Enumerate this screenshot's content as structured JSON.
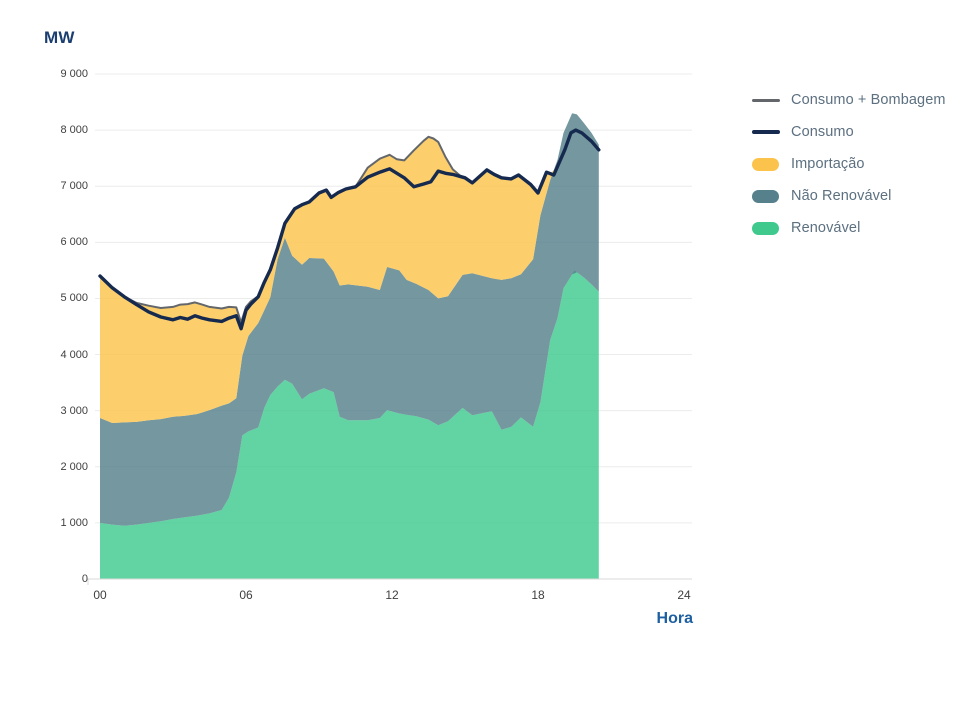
{
  "page": {
    "background": "#FFFFFF"
  },
  "chart": {
    "y_axis_title": "MW",
    "x_axis_title": "Hora",
    "legend": [
      {
        "id": "consumo-bombagem",
        "label": "Consumo + Bombagem",
        "swatch": "line",
        "color": "#63676B",
        "thickness": 3
      },
      {
        "id": "consumo",
        "label": "Consumo",
        "swatch": "line",
        "color": "#16294E",
        "thickness": 4
      },
      {
        "id": "importacao",
        "label": "Importação",
        "swatch": "pill",
        "color": "#FBC34C"
      },
      {
        "id": "nao-renovavel",
        "label": "Não Renovável",
        "swatch": "pill",
        "color": "#56808B"
      },
      {
        "id": "renovavel",
        "label": "Renovável",
        "swatch": "pill",
        "color": "#3FC98D"
      }
    ]
  },
  "chart_data": {
    "type": "area",
    "title": "MW",
    "xlabel": "Hora",
    "ylabel": "MW",
    "xlim": [
      0,
      24
    ],
    "ylim": [
      0,
      9000
    ],
    "grid": "horizontal",
    "legend_position": "right",
    "data_end_hour": 20.5,
    "x_ticks": {
      "values": [
        0,
        6,
        12,
        18,
        24
      ],
      "labels": [
        "00",
        "06",
        "12",
        "18",
        "24"
      ]
    },
    "y_ticks": {
      "values": [
        0,
        1000,
        2000,
        3000,
        4000,
        5000,
        6000,
        7000,
        8000,
        9000
      ],
      "labels": [
        "0",
        "1 000",
        "2 000",
        "3 000",
        "4 000",
        "5 000",
        "6 000",
        "7 000",
        "8 000",
        "9 000"
      ]
    },
    "colors": {
      "renovavel": "#3FC98D",
      "nao_renovavel": "#56808B",
      "importacao": "#FBC34C",
      "consumo": "#16294E",
      "consumo_bombagem": "#63676B",
      "area_fill_opacity": 0.82,
      "gridline": "#ECECEC",
      "axis_baseline": "#D8D8D8",
      "tick_text": "#3F3F3F",
      "mw_title": "#1B3E70",
      "hora_title": "#1D5FA0",
      "legend_text": "#5C7080"
    },
    "stacking_note": "Area series give cumulative stack tops in MW ([hour, MW]). Importação band top = max(Consumo + Bombagem, Não Renovável top); it exists only while imports > 0 (until ~18.8h).",
    "series": [
      {
        "name": "Renovável",
        "type": "area",
        "role": "stack-top-1",
        "color": "#3FC98D",
        "points": [
          [
            0,
            1000
          ],
          [
            0.5,
            970
          ],
          [
            1,
            950
          ],
          [
            1.5,
            970
          ],
          [
            2,
            1000
          ],
          [
            2.5,
            1030
          ],
          [
            3,
            1070
          ],
          [
            3.5,
            1100
          ],
          [
            4,
            1130
          ],
          [
            4.5,
            1170
          ],
          [
            5,
            1230
          ],
          [
            5.3,
            1450
          ],
          [
            5.6,
            1900
          ],
          [
            5.85,
            2560
          ],
          [
            6.1,
            2630
          ],
          [
            6.5,
            2700
          ],
          [
            6.75,
            3050
          ],
          [
            7,
            3280
          ],
          [
            7.3,
            3430
          ],
          [
            7.6,
            3550
          ],
          [
            7.9,
            3480
          ],
          [
            8.3,
            3200
          ],
          [
            8.6,
            3300
          ],
          [
            9.2,
            3400
          ],
          [
            9.6,
            3330
          ],
          [
            9.85,
            2890
          ],
          [
            10.2,
            2830
          ],
          [
            11,
            2830
          ],
          [
            11.5,
            2870
          ],
          [
            11.8,
            3010
          ],
          [
            12.3,
            2950
          ],
          [
            13,
            2900
          ],
          [
            13.5,
            2840
          ],
          [
            13.9,
            2740
          ],
          [
            14.3,
            2810
          ],
          [
            14.9,
            3050
          ],
          [
            15.3,
            2920
          ],
          [
            16.1,
            2990
          ],
          [
            16.5,
            2660
          ],
          [
            16.9,
            2710
          ],
          [
            17.3,
            2880
          ],
          [
            17.8,
            2715
          ],
          [
            18.1,
            3150
          ],
          [
            18.5,
            4260
          ],
          [
            18.8,
            4650
          ],
          [
            19.05,
            5180
          ],
          [
            19.5,
            5500
          ],
          [
            19.9,
            5370
          ],
          [
            20.2,
            5250
          ],
          [
            20.5,
            5120
          ]
        ]
      },
      {
        "name": "Não Renovável",
        "type": "area",
        "role": "stack-top-2",
        "color": "#56808B",
        "points": [
          [
            0,
            2870
          ],
          [
            0.5,
            2780
          ],
          [
            1,
            2790
          ],
          [
            1.5,
            2800
          ],
          [
            2,
            2830
          ],
          [
            2.5,
            2850
          ],
          [
            3,
            2890
          ],
          [
            3.5,
            2910
          ],
          [
            4,
            2940
          ],
          [
            4.5,
            3010
          ],
          [
            5,
            3090
          ],
          [
            5.3,
            3130
          ],
          [
            5.6,
            3220
          ],
          [
            5.85,
            3980
          ],
          [
            6.1,
            4330
          ],
          [
            6.5,
            4560
          ],
          [
            6.75,
            4790
          ],
          [
            7,
            5020
          ],
          [
            7.3,
            5700
          ],
          [
            7.6,
            6080
          ],
          [
            7.9,
            5760
          ],
          [
            8.3,
            5600
          ],
          [
            8.6,
            5720
          ],
          [
            9.2,
            5710
          ],
          [
            9.6,
            5480
          ],
          [
            9.85,
            5230
          ],
          [
            10.2,
            5250
          ],
          [
            11,
            5210
          ],
          [
            11.5,
            5150
          ],
          [
            11.8,
            5560
          ],
          [
            12.3,
            5500
          ],
          [
            12.6,
            5330
          ],
          [
            13,
            5260
          ],
          [
            13.5,
            5150
          ],
          [
            13.9,
            5000
          ],
          [
            14.3,
            5040
          ],
          [
            14.9,
            5420
          ],
          [
            15.3,
            5450
          ],
          [
            16.1,
            5360
          ],
          [
            16.5,
            5330
          ],
          [
            16.9,
            5360
          ],
          [
            17.3,
            5430
          ],
          [
            17.8,
            5700
          ],
          [
            18.1,
            6480
          ],
          [
            18.5,
            7110
          ],
          [
            18.8,
            7470
          ],
          [
            19.05,
            7950
          ],
          [
            19.4,
            8300
          ],
          [
            19.6,
            8280
          ],
          [
            19.9,
            8120
          ],
          [
            20.2,
            7950
          ],
          [
            20.5,
            7740
          ]
        ]
      },
      {
        "name": "Importação",
        "type": "area",
        "role": "stack-top-3",
        "color": "#FBC34C",
        "top_equals": "max(Consumo + Bombagem, Não Renovável top)"
      },
      {
        "name": "Consumo + Bombagem",
        "type": "line",
        "color": "#63676B",
        "points": [
          [
            0,
            5400
          ],
          [
            0.5,
            5190
          ],
          [
            1,
            5030
          ],
          [
            1.5,
            4920
          ],
          [
            2,
            4870
          ],
          [
            2.5,
            4830
          ],
          [
            3,
            4850
          ],
          [
            3.3,
            4890
          ],
          [
            3.6,
            4900
          ],
          [
            3.9,
            4930
          ],
          [
            4.2,
            4890
          ],
          [
            4.5,
            4850
          ],
          [
            5,
            4820
          ],
          [
            5.3,
            4850
          ],
          [
            5.6,
            4840
          ],
          [
            5.8,
            4570
          ],
          [
            6,
            4850
          ],
          [
            6.2,
            4950
          ],
          [
            6.5,
            5040
          ],
          [
            6.75,
            5290
          ],
          [
            7,
            5510
          ],
          [
            7.3,
            5900
          ],
          [
            7.6,
            6340
          ],
          [
            8,
            6600
          ],
          [
            8.3,
            6670
          ],
          [
            8.6,
            6720
          ],
          [
            9,
            6880
          ],
          [
            9.3,
            6930
          ],
          [
            9.5,
            6800
          ],
          [
            9.8,
            6890
          ],
          [
            10.1,
            6950
          ],
          [
            10.5,
            6990
          ],
          [
            11,
            7330
          ],
          [
            11.5,
            7490
          ],
          [
            11.9,
            7560
          ],
          [
            12.2,
            7480
          ],
          [
            12.5,
            7460
          ],
          [
            12.9,
            7640
          ],
          [
            13.3,
            7810
          ],
          [
            13.5,
            7880
          ],
          [
            13.7,
            7850
          ],
          [
            13.9,
            7790
          ],
          [
            14.2,
            7520
          ],
          [
            14.5,
            7300
          ],
          [
            14.8,
            7190
          ],
          [
            15,
            7150
          ],
          [
            15.3,
            7060
          ],
          [
            15.9,
            7290
          ],
          [
            16.2,
            7210
          ],
          [
            16.5,
            7150
          ],
          [
            16.9,
            7130
          ],
          [
            17.2,
            7200
          ],
          [
            17.7,
            7030
          ],
          [
            18,
            6880
          ],
          [
            18.35,
            7250
          ],
          [
            18.65,
            7200
          ],
          [
            19.1,
            7650
          ],
          [
            19.35,
            7950
          ],
          [
            19.55,
            8000
          ],
          [
            19.8,
            7950
          ],
          [
            20.2,
            7800
          ],
          [
            20.5,
            7650
          ]
        ]
      },
      {
        "name": "Consumo",
        "type": "line",
        "color": "#16294E",
        "points": [
          [
            0,
            5400
          ],
          [
            0.5,
            5190
          ],
          [
            1,
            5030
          ],
          [
            1.5,
            4890
          ],
          [
            2,
            4760
          ],
          [
            2.5,
            4670
          ],
          [
            3,
            4620
          ],
          [
            3.3,
            4660
          ],
          [
            3.6,
            4630
          ],
          [
            3.9,
            4690
          ],
          [
            4.2,
            4650
          ],
          [
            4.5,
            4620
          ],
          [
            5,
            4590
          ],
          [
            5.3,
            4650
          ],
          [
            5.6,
            4690
          ],
          [
            5.8,
            4460
          ],
          [
            6,
            4790
          ],
          [
            6.2,
            4900
          ],
          [
            6.5,
            5030
          ],
          [
            6.75,
            5290
          ],
          [
            7,
            5510
          ],
          [
            7.3,
            5900
          ],
          [
            7.6,
            6340
          ],
          [
            8,
            6600
          ],
          [
            8.3,
            6670
          ],
          [
            8.6,
            6720
          ],
          [
            9,
            6880
          ],
          [
            9.3,
            6930
          ],
          [
            9.5,
            6800
          ],
          [
            9.8,
            6890
          ],
          [
            10.1,
            6950
          ],
          [
            10.5,
            6990
          ],
          [
            11,
            7160
          ],
          [
            11.5,
            7250
          ],
          [
            11.9,
            7310
          ],
          [
            12.2,
            7230
          ],
          [
            12.5,
            7150
          ],
          [
            12.9,
            6990
          ],
          [
            13.3,
            7040
          ],
          [
            13.6,
            7080
          ],
          [
            13.9,
            7270
          ],
          [
            14.2,
            7230
          ],
          [
            14.5,
            7210
          ],
          [
            15,
            7150
          ],
          [
            15.3,
            7060
          ],
          [
            15.9,
            7290
          ],
          [
            16.2,
            7210
          ],
          [
            16.5,
            7150
          ],
          [
            16.9,
            7130
          ],
          [
            17.2,
            7200
          ],
          [
            17.7,
            7030
          ],
          [
            18,
            6880
          ],
          [
            18.35,
            7250
          ],
          [
            18.65,
            7200
          ],
          [
            19.1,
            7650
          ],
          [
            19.35,
            7950
          ],
          [
            19.55,
            8000
          ],
          [
            19.8,
            7950
          ],
          [
            20.2,
            7800
          ],
          [
            20.5,
            7650
          ]
        ]
      }
    ]
  }
}
